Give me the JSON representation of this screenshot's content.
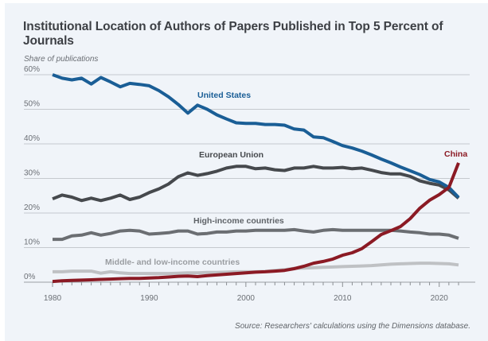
{
  "chart_data": {
    "type": "line",
    "title": "Institutional Location of Authors of Papers Published in Top 5 Percent of Journals",
    "ylabel": "Share of publications",
    "xlabel": "",
    "source": "Source: Researchers' calculations using the Dimensions database.",
    "xlim": [
      1980,
      2022
    ],
    "ylim": [
      0,
      60
    ],
    "grid": true,
    "x_ticks": [
      1980,
      1990,
      2000,
      2010,
      2020
    ],
    "x_tick_labels": [
      "1980",
      "1990",
      "2000",
      "2010",
      "2020"
    ],
    "y_ticks": [
      0,
      10,
      20,
      30,
      40,
      50,
      60
    ],
    "y_tick_labels": [
      "0%",
      "10%",
      "20%",
      "30%",
      "40%",
      "50%",
      "60%"
    ],
    "x": [
      1980,
      1981,
      1982,
      1983,
      1984,
      1985,
      1986,
      1987,
      1988,
      1989,
      1990,
      1991,
      1992,
      1993,
      1994,
      1995,
      1996,
      1997,
      1998,
      1999,
      2000,
      2001,
      2002,
      2003,
      2004,
      2005,
      2006,
      2007,
      2008,
      2009,
      2010,
      2011,
      2012,
      2013,
      2014,
      2015,
      2016,
      2017,
      2018,
      2019,
      2020,
      2021,
      2022
    ],
    "series": [
      {
        "name": "United States",
        "color": "#1a5e96",
        "values": [
          60.0,
          59.0,
          58.5,
          59.0,
          57.3,
          59.2,
          57.9,
          56.5,
          57.5,
          57.2,
          56.8,
          55.4,
          53.6,
          51.4,
          48.9,
          51.2,
          50.0,
          48.4,
          47.2,
          46.1,
          45.9,
          45.9,
          45.6,
          45.6,
          45.4,
          44.3,
          44.0,
          42.0,
          41.8,
          40.7,
          39.5,
          38.8,
          37.9,
          36.8,
          35.6,
          34.5,
          33.3,
          32.2,
          31.1,
          29.7,
          29.0,
          27.4,
          24.5
        ]
      },
      {
        "name": "European Union",
        "color": "#46494d",
        "values": [
          24.1,
          25.2,
          24.6,
          23.6,
          24.3,
          23.6,
          24.3,
          25.2,
          23.9,
          24.6,
          25.9,
          27.0,
          28.4,
          30.5,
          31.6,
          30.9,
          31.4,
          32.1,
          33.0,
          33.5,
          33.5,
          32.8,
          33.0,
          32.5,
          32.3,
          33.0,
          33.0,
          33.5,
          33.0,
          33.0,
          33.2,
          32.8,
          33.0,
          32.4,
          31.7,
          31.3,
          31.3,
          30.6,
          29.3,
          28.6,
          28.1,
          26.7,
          24.3
        ]
      },
      {
        "name": "High-income countries",
        "color": "#6b6e72",
        "values": [
          12.4,
          12.4,
          13.4,
          13.6,
          14.3,
          13.6,
          14.1,
          14.8,
          15.0,
          14.8,
          13.9,
          14.1,
          14.3,
          14.8,
          14.8,
          13.9,
          14.1,
          14.5,
          14.5,
          14.8,
          14.8,
          15.0,
          15.0,
          15.0,
          15.0,
          15.2,
          14.8,
          14.5,
          15.0,
          15.2,
          15.0,
          15.0,
          15.0,
          15.0,
          15.0,
          15.0,
          14.8,
          14.5,
          14.3,
          13.9,
          13.9,
          13.6,
          12.7
        ]
      },
      {
        "name": "Middle- and low-income countries",
        "color": "#bfc1c4",
        "values": [
          3.0,
          3.0,
          3.2,
          3.2,
          3.2,
          2.6,
          3.0,
          2.7,
          2.5,
          2.5,
          2.5,
          2.5,
          2.5,
          2.6,
          2.7,
          2.7,
          2.8,
          2.8,
          2.9,
          3.0,
          3.0,
          3.0,
          3.1,
          3.4,
          3.6,
          4.0,
          4.1,
          4.2,
          4.3,
          4.4,
          4.5,
          4.6,
          4.7,
          4.8,
          5.0,
          5.2,
          5.3,
          5.4,
          5.5,
          5.5,
          5.4,
          5.3,
          5.0
        ]
      },
      {
        "name": "China",
        "color": "#8b1a24",
        "values": [
          0.2,
          0.4,
          0.5,
          0.6,
          0.7,
          0.8,
          0.9,
          1.0,
          1.1,
          1.1,
          1.2,
          1.3,
          1.5,
          1.7,
          1.8,
          1.6,
          1.9,
          2.1,
          2.3,
          2.5,
          2.7,
          2.9,
          3.0,
          3.2,
          3.4,
          3.9,
          4.6,
          5.5,
          6.0,
          6.7,
          7.8,
          8.5,
          9.7,
          11.7,
          13.8,
          14.9,
          16.1,
          18.4,
          21.4,
          23.7,
          25.3,
          27.4,
          34.5
        ]
      }
    ],
    "annotations": [
      {
        "text": "United States",
        "series": "United States"
      },
      {
        "text": "European Union",
        "series": "European Union"
      },
      {
        "text": "High-income countries",
        "series": "High-income countries"
      },
      {
        "text": "Middle- and low-income countries",
        "series": "Middle- and low-income countries"
      },
      {
        "text": "China",
        "series": "China"
      }
    ]
  }
}
